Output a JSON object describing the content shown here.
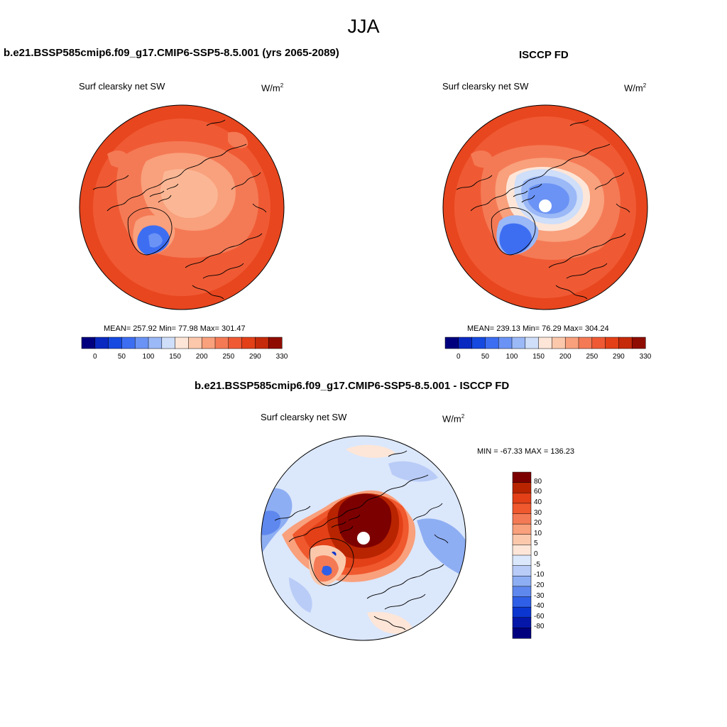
{
  "main_title": "JJA",
  "panels": [
    {
      "title": "b.e21.BSSP585cmip6.f09_g17.CMIP6-SSP5-8.5.001 (yrs 2065-2089)",
      "variable": "Surf clearsky net SW",
      "units": "W/m",
      "units_sup": "2",
      "stats_text": "MEAN= 257.92  Min=  77.98  Max= 301.47"
    },
    {
      "title": "ISCCP FD",
      "variable": "Surf clearsky net SW",
      "units": "W/m",
      "units_sup": "2",
      "stats_text": "MEAN= 239.13  Min=  76.29  Max= 304.24"
    }
  ],
  "diff_panel": {
    "title": "b.e21.BSSP585cmip6.f09_g17.CMIP6-SSP5-8.5.001 - ISCCP FD",
    "variable": "Surf clearsky net SW",
    "units": "W/m",
    "units_sup": "2",
    "stats_text": "MIN = -67.33 MAX = 136.23"
  },
  "abs_colorbar": {
    "colors": [
      "#00007f",
      "#0a29c1",
      "#1549e0",
      "#3d6ef2",
      "#6b93f5",
      "#9bb8f7",
      "#cfdef9",
      "#fde6d8",
      "#fcc8ac",
      "#f9a07c",
      "#f47a55",
      "#ef5a34",
      "#e34018",
      "#c52a0a",
      "#8f0d00"
    ],
    "labels": [
      "0",
      "50",
      "100",
      "150",
      "200",
      "250",
      "290",
      "330"
    ]
  },
  "diff_colorbar": {
    "colors": [
      "#7d0000",
      "#b82400",
      "#e34018",
      "#f0582e",
      "#f47a55",
      "#f9a07c",
      "#fcc8ac",
      "#fde6d8",
      "#dbe7fb",
      "#b9ccf7",
      "#8eaef3",
      "#5f88ee",
      "#2f5fe6",
      "#0b36cf",
      "#0517a8",
      "#00007f"
    ],
    "labels": [
      "80",
      "60",
      "40",
      "30",
      "20",
      "10",
      "5",
      "0",
      "-5",
      "-10",
      "-20",
      "-30",
      "-40",
      "-60",
      "-80"
    ]
  }
}
